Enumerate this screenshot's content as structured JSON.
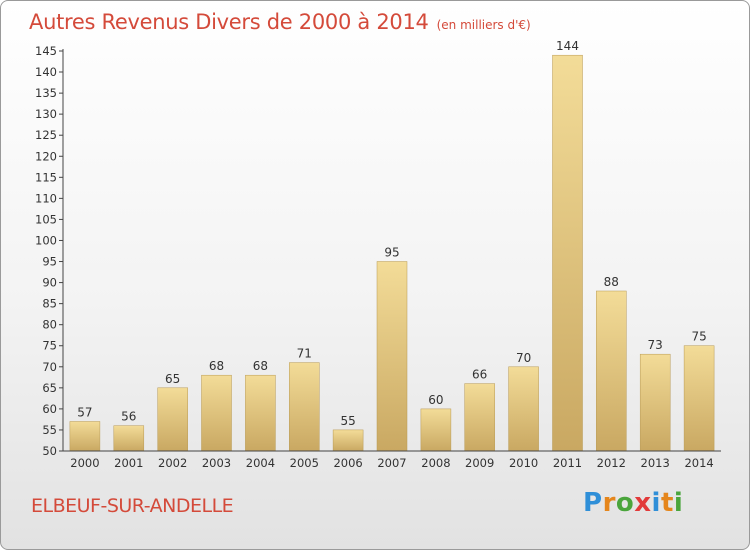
{
  "header": {
    "title": "Autres Revenus Divers de 2000 à 2014",
    "subtitle": "(en milliers d'€)"
  },
  "footer": {
    "commune": "ELBEUF-SUR-ANDELLE",
    "logo_text": "Proxiti",
    "logo_colors": [
      "#2f8fd8",
      "#e5861c",
      "#4aa53c",
      "#e23a3a",
      "#2f8fd8",
      "#e5861c",
      "#4aa53c"
    ]
  },
  "colors": {
    "bar_light": "#f3dc98",
    "bar_dark": "#c9a862",
    "axis": "#444444",
    "text": "#333333",
    "accent": "#d44a3a"
  },
  "chart_data": {
    "type": "bar",
    "title": "Autres Revenus Divers de 2000 à 2014",
    "subtitle": "(en milliers d'€)",
    "categories": [
      "2000",
      "2001",
      "2002",
      "2003",
      "2004",
      "2005",
      "2006",
      "2007",
      "2008",
      "2009",
      "2010",
      "2011",
      "2012",
      "2013",
      "2014"
    ],
    "values": [
      57,
      56,
      65,
      68,
      68,
      71,
      55,
      95,
      60,
      66,
      70,
      144,
      88,
      73,
      75
    ],
    "ylim": [
      50,
      145
    ],
    "yticks": [
      50,
      55,
      60,
      65,
      70,
      75,
      80,
      85,
      90,
      95,
      100,
      105,
      110,
      115,
      120,
      125,
      130,
      135,
      140,
      145
    ],
    "xlabel": "",
    "ylabel": "",
    "grid": false,
    "data_labels": true
  }
}
